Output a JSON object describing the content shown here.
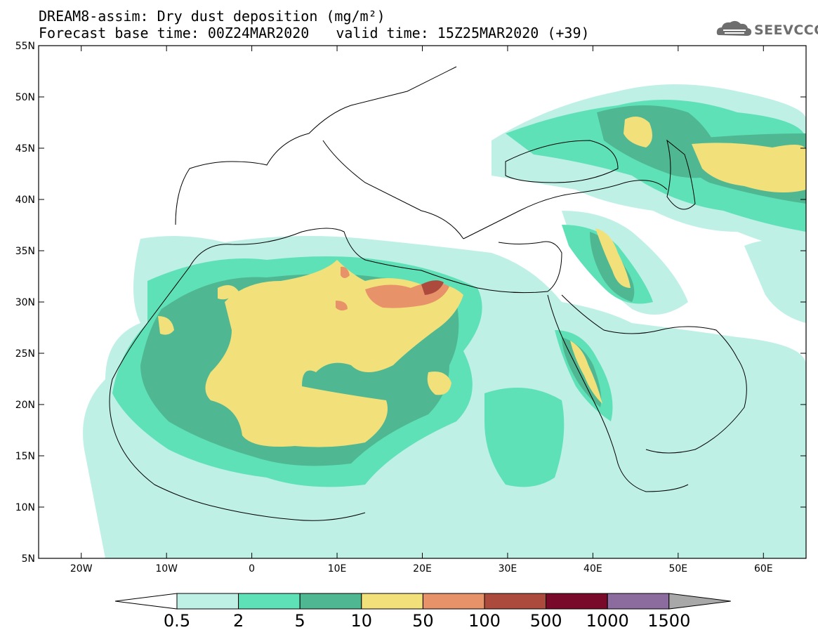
{
  "title": {
    "line1": "DREAM8-assim: Dry dust deposition (mg/m²)",
    "base_time": "Forecast base time: 00Z24MAR2020",
    "valid_time": "valid time: 15Z25MAR2020 (+39)"
  },
  "logo": {
    "text": "SEEVCCC",
    "icon": "cloud-icon"
  },
  "map": {
    "region": "Europe, North Africa and Middle East",
    "lon_range": [
      -25,
      65
    ],
    "lat_range": [
      5,
      55
    ],
    "lon_ticks": [
      {
        "value": -20,
        "label": "20W"
      },
      {
        "value": -10,
        "label": "10W"
      },
      {
        "value": 0,
        "label": "0"
      },
      {
        "value": 10,
        "label": "10E"
      },
      {
        "value": 20,
        "label": "20E"
      },
      {
        "value": 30,
        "label": "30E"
      },
      {
        "value": 40,
        "label": "40E"
      },
      {
        "value": 50,
        "label": "50E"
      },
      {
        "value": 60,
        "label": "60E"
      }
    ],
    "lat_ticks": [
      {
        "value": 55,
        "label": "55N"
      },
      {
        "value": 50,
        "label": "50N"
      },
      {
        "value": 45,
        "label": "45N"
      },
      {
        "value": 40,
        "label": "40N"
      },
      {
        "value": 35,
        "label": "35N"
      },
      {
        "value": 30,
        "label": "30N"
      },
      {
        "value": 25,
        "label": "25N"
      },
      {
        "value": 20,
        "label": "20N"
      },
      {
        "value": 15,
        "label": "15N"
      },
      {
        "value": 10,
        "label": "10N"
      },
      {
        "value": 5,
        "label": "5N"
      }
    ]
  },
  "colorbar": {
    "labels": [
      "0.5",
      "2",
      "5",
      "10",
      "50",
      "100",
      "500",
      "1000",
      "1500"
    ],
    "colors": [
      "#bff0e6",
      "#5fe1b8",
      "#4fb892",
      "#f2e07a",
      "#e8926a",
      "#ac4a3e",
      "#7a0a2a",
      "#8c6b9e"
    ],
    "below_color": "#ffffff",
    "above_color": "#a8a8a8"
  }
}
